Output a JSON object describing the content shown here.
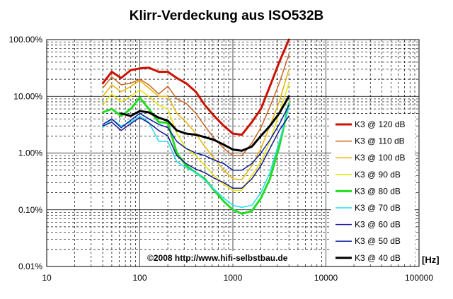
{
  "chart_data": {
    "type": "line",
    "title": "Klirr-Verdeckung aus ISO532B",
    "x_scale": "log",
    "y_scale": "log",
    "xlim": [
      10,
      100000
    ],
    "ylim": [
      0.0001,
      1
    ],
    "x_ticks": [
      10,
      100,
      1000,
      10000,
      100000
    ],
    "x_tick_labels": [
      "10",
      "100",
      "1000",
      "10000",
      "100000"
    ],
    "y_ticks": [
      0.0001,
      0.001,
      0.01,
      0.1,
      1
    ],
    "y_tick_labels": [
      "0.01%",
      "0.10%",
      "1.00%",
      "10.00%",
      "100.00%"
    ],
    "x_unit": "[Hz]",
    "grid": true,
    "legend_position": "right",
    "copyright": "©2008 http://www.hifi-selbstbau.de",
    "x": [
      40,
      50,
      63,
      80,
      100,
      125,
      160,
      200,
      250,
      315,
      400,
      500,
      630,
      800,
      1000,
      1250,
      1600,
      2000,
      2500,
      3150,
      4000
    ],
    "series": [
      {
        "name": "K3 @ 120 dB",
        "color": "#cc1100",
        "width": 3,
        "values": [
          0.17,
          0.27,
          0.21,
          0.29,
          0.31,
          0.32,
          0.27,
          0.27,
          0.21,
          0.17,
          0.12,
          0.07,
          0.045,
          0.03,
          0.022,
          0.021,
          0.035,
          0.06,
          0.15,
          0.4,
          1.0
        ]
      },
      {
        "name": "K3 @ 110 dB",
        "color": "#cc6622",
        "width": 1.5,
        "values": [
          0.14,
          0.22,
          0.16,
          0.17,
          0.2,
          0.16,
          0.11,
          0.15,
          0.09,
          0.075,
          0.05,
          0.03,
          0.018,
          0.012,
          0.009,
          0.009,
          0.015,
          0.028,
          0.065,
          0.17,
          0.55
        ]
      },
      {
        "name": "K3 @ 100 dB",
        "color": "#e8b400",
        "width": 1.5,
        "values": [
          0.1,
          0.16,
          0.12,
          0.15,
          0.19,
          0.14,
          0.1,
          0.1,
          0.05,
          0.035,
          0.022,
          0.013,
          0.008,
          0.005,
          0.0035,
          0.0034,
          0.006,
          0.012,
          0.03,
          0.08,
          0.3
        ]
      },
      {
        "name": "K3 @ 90 dB",
        "color": "#e8e800",
        "width": 1.5,
        "values": [
          0.07,
          0.11,
          0.08,
          0.1,
          0.13,
          0.1,
          0.07,
          0.06,
          0.022,
          0.012,
          0.009,
          0.006,
          0.004,
          0.0028,
          0.0022,
          0.0022,
          0.004,
          0.007,
          0.016,
          0.05,
          0.17
        ]
      },
      {
        "name": "K3 @ 80 dB",
        "color": "#22dd22",
        "width": 3,
        "values": [
          0.052,
          0.06,
          0.045,
          0.06,
          0.095,
          0.06,
          0.035,
          0.034,
          0.01,
          0.006,
          0.0045,
          0.0035,
          0.0022,
          0.0014,
          0.001,
          0.00085,
          0.00095,
          0.0016,
          0.0035,
          0.013,
          0.075
        ]
      },
      {
        "name": "K3 @ 70 dB",
        "color": "#22ddee",
        "width": 1.5,
        "values": [
          0.028,
          0.04,
          0.03,
          0.035,
          0.045,
          0.035,
          0.016,
          0.016,
          0.007,
          0.0055,
          0.0045,
          0.0033,
          0.0023,
          0.0016,
          0.0012,
          0.0011,
          0.0012,
          0.002,
          0.0045,
          0.016,
          0.065
        ]
      },
      {
        "name": "K3 @ 60 dB",
        "color": "#1a1a8c",
        "width": 1.5,
        "values": [
          0.03,
          0.035,
          0.025,
          0.033,
          0.042,
          0.034,
          0.025,
          0.02,
          0.009,
          0.0065,
          0.0052,
          0.0045,
          0.0036,
          0.003,
          0.0024,
          0.0024,
          0.0035,
          0.006,
          0.012,
          0.025,
          0.045
        ]
      },
      {
        "name": "K3 @ 50 dB",
        "color": "#0a1ea0",
        "width": 1.5,
        "values": [
          0.032,
          0.04,
          0.028,
          0.038,
          0.05,
          0.04,
          0.032,
          0.028,
          0.016,
          0.012,
          0.01,
          0.009,
          0.0075,
          0.0065,
          0.005,
          0.005,
          0.0065,
          0.01,
          0.017,
          0.032,
          0.07
        ]
      },
      {
        "name": "K3 @ 40 dB",
        "color": "#000000",
        "width": 3,
        "values": [
          null,
          null,
          0.05,
          0.045,
          0.055,
          0.052,
          0.042,
          0.037,
          0.025,
          0.022,
          0.021,
          0.019,
          0.017,
          0.014,
          0.0115,
          0.011,
          0.013,
          0.02,
          0.03,
          0.05,
          0.1
        ]
      }
    ]
  }
}
